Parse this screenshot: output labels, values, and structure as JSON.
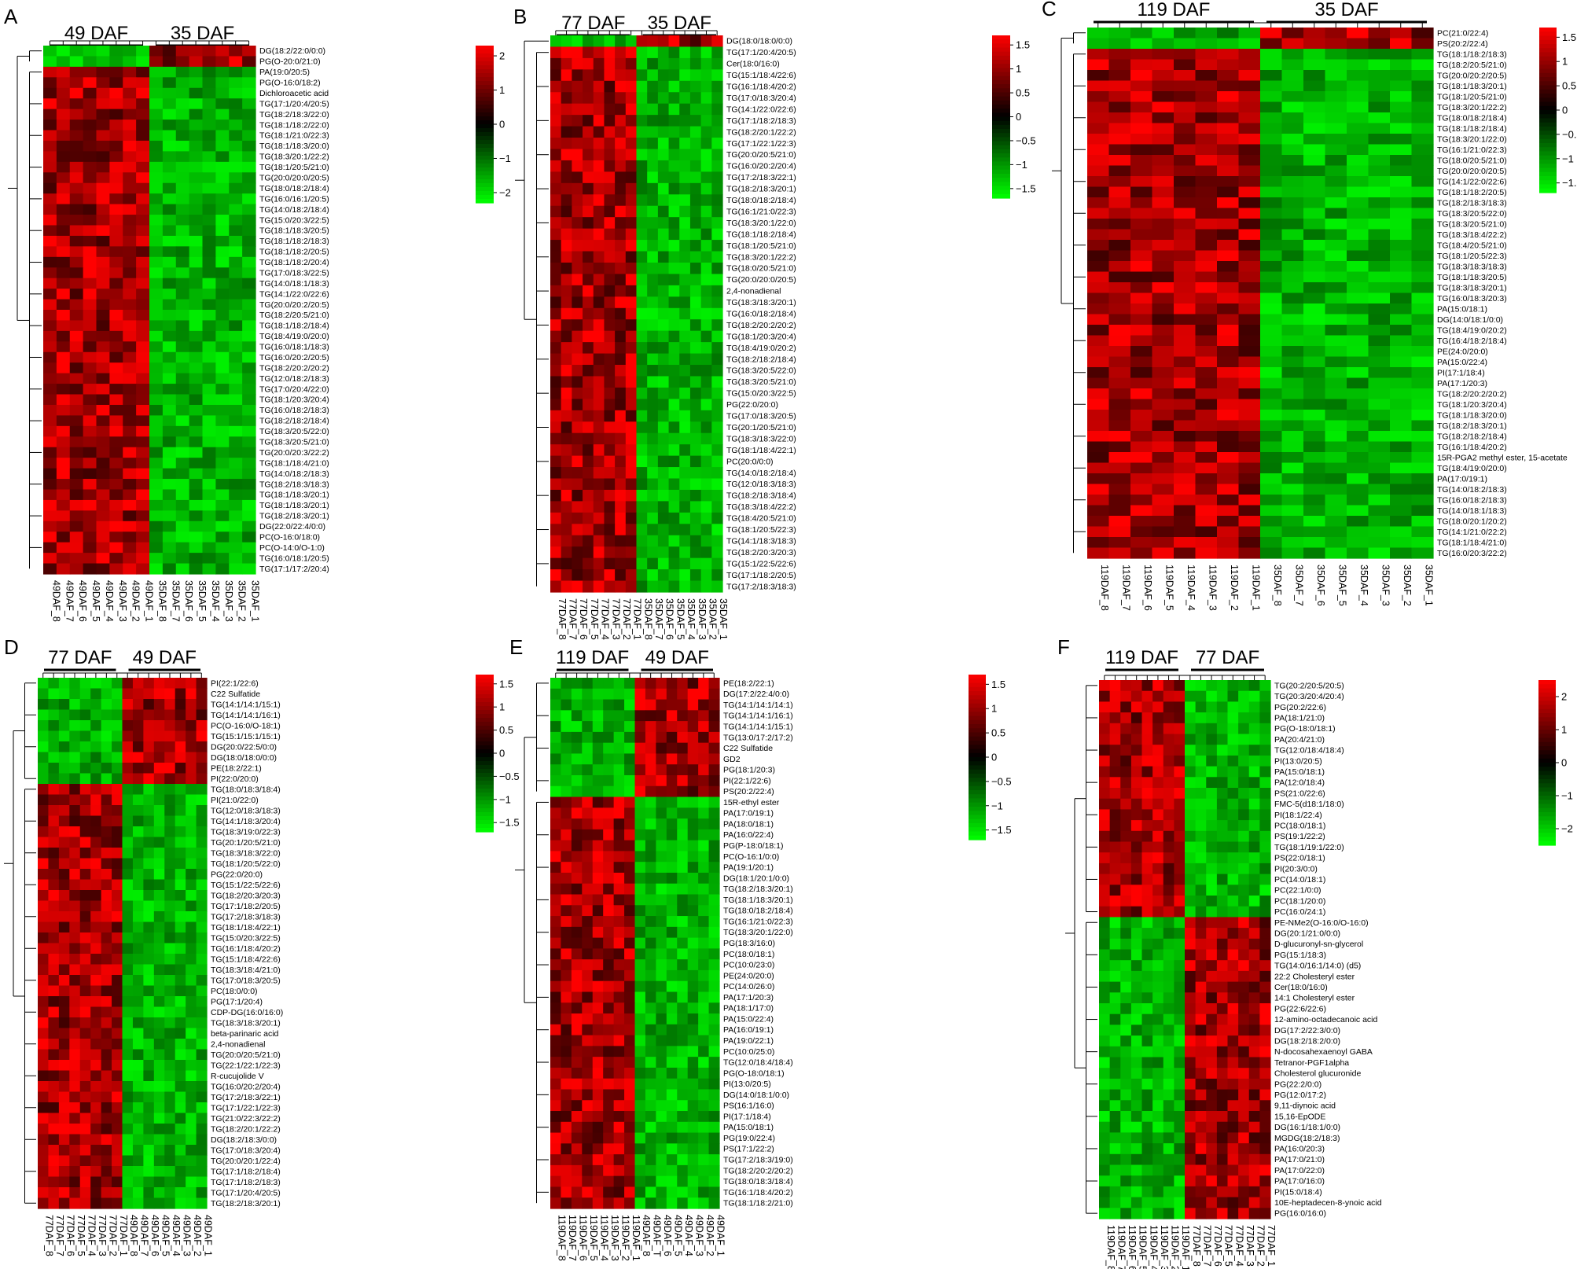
{
  "colors": {
    "low": "#00ff00",
    "mid": "#000000",
    "high": "#ff0000"
  },
  "chart_data": [
    {
      "type": "heatmap",
      "panel": "A",
      "groups": [
        "49 DAF",
        "35 DAF"
      ],
      "columns": [
        "49DAF_8",
        "49DAF_7",
        "49DAF_6",
        "49DAF_5",
        "49DAF_4",
        "49DAF_3",
        "49DAF_2",
        "49DAF_1",
        "35DAF_8",
        "35DAF_7",
        "35DAF_6",
        "35DAF_5",
        "35DAF_4",
        "35DAF_3",
        "35DAF_2",
        "35DAF_1"
      ],
      "rows": [
        "DG(18:2/22:0/0:0)",
        "PG(O-20:0/21:0)",
        "PA(19:0/20:5)",
        "PG(O-16:0/18:2)",
        "Dichloroacetic acid",
        "TG(17:1/20:4/20:5)",
        "TG(18:2/18:3/22:0)",
        "TG(18:1/18:2/22:0)",
        "TG(18:1/21:0/22:3)",
        "TG(18:1/18:3/20:0)",
        "TG(18:3/20:1/22:2)",
        "TG(18:1/20:5/21:0)",
        "TG(20:0/20:0/20:5)",
        "TG(18:0/18:2/18:4)",
        "TG(16:0/16:1/20:5)",
        "TG(14:0/18:2/18:4)",
        "TG(15:0/20:3/22:5)",
        "TG(18:1/18:3/20:5)",
        "TG(18:1/18:2/18:3)",
        "TG(18:1/18:2/20:5)",
        "TG(18:1/18:2/20:4)",
        "TG(17:0/18:3/22:5)",
        "TG(14:0/18:1/18:3)",
        "TG(14:1/22:0/22:6)",
        "TG(20:0/20:2/20:5)",
        "TG(18:2/20:5/21:0)",
        "TG(18:1/18:2/18:4)",
        "TG(18:4/19:0/20:0)",
        "TG(16:0/18:1/18:3)",
        "TG(16:0/20:2/20:5)",
        "TG(18:2/20:2/20:2)",
        "TG(12:0/18:2/18:3)",
        "TG(17:0/20:4/22:0)",
        "TG(18:1/20:3/20:4)",
        "TG(16:0/18:2/18:3)",
        "TG(18:2/18:2/18:4)",
        "TG(18:3/20:5/22:0)",
        "TG(18:3/20:5/21:0)",
        "TG(20:0/20:3/22:2)",
        "TG(18:1/18:4/21:0)",
        "TG(14:0/18:2/18:3)",
        "TG(18:2/18:3/18:3)",
        "TG(18:1/18:3/20:1)",
        "TG(18:1/18:3/20:1)",
        "TG(18:2/18:3/20:1)",
        "DG(22:0/22:4/0:0)",
        "PC(O-16:0/18:0)",
        "PC(O-14:0/O-1:0)",
        "TG(16:0/18:1/20:5)",
        "TG(17:1/17:2/20:4)"
      ],
      "pattern": [
        "down",
        "down",
        "up",
        "up",
        "up",
        "up",
        "up",
        "up",
        "up",
        "up",
        "up",
        "up",
        "up",
        "up",
        "up",
        "up",
        "up",
        "up",
        "up",
        "up",
        "up",
        "up",
        "up",
        "up",
        "up",
        "up",
        "up",
        "up",
        "up",
        "up",
        "up",
        "up",
        "up",
        "up",
        "up",
        "up",
        "up",
        "up",
        "up",
        "up",
        "up",
        "up",
        "up",
        "up",
        "up",
        "up",
        "up",
        "up",
        "up",
        "up"
      ],
      "colorbar": {
        "ticks": [
          "2",
          "1",
          "0",
          "−1",
          "−2"
        ],
        "range": [
          -2.3,
          2.3
        ]
      }
    },
    {
      "type": "heatmap",
      "panel": "B",
      "groups": [
        "77 DAF",
        "35 DAF"
      ],
      "columns": [
        "77DAF_8",
        "77DAF_7",
        "77DAF_6",
        "77DAF_5",
        "77DAF_4",
        "77DAF_3",
        "77DAF_2",
        "77DAF_1",
        "35DAF_8",
        "35DAF_7",
        "35DAF_6",
        "35DAF_5",
        "35DAF_4",
        "35DAF_3",
        "35DAF_2",
        "35DAF_1"
      ],
      "rows": [
        "DG(18:0/18:0/0:0)",
        "TG(17:1/20:4/20:5)",
        "Cer(18:0/16:0)",
        "TG(15:1/18:4/22:6)",
        "TG(16:1/18:4/20:2)",
        "TG(17:0/18:3/20:4)",
        "TG(14:1/22:0/22:6)",
        "TG(17:1/18:2/18:3)",
        "TG(18:2/20:1/22:2)",
        "TG(17:1/22:1/22:3)",
        "TG(20:0/20:5/21:0)",
        "TG(16:0/20:2/20:4)",
        "TG(17:2/18:3/22:1)",
        "TG(18:2/18:3/20:1)",
        "TG(18:0/18:2/18:4)",
        "TG(16:1/21:0/22:3)",
        "TG(18:3/20:1/22:0)",
        "TG(18:1/18:2/18:4)",
        "TG(18:1/20:5/21:0)",
        "TG(18:3/20:1/22:2)",
        "TG(18:0/20:5/21:0)",
        "TG(20:0/20:0/20:5)",
        "2,4-nonadienal",
        "TG(18:3/18:3/20:1)",
        "TG(16:0/18:2/18:4)",
        "TG(18:2/20:2/20:2)",
        "TG(18:1/20:3/20:4)",
        "TG(18:4/19:0/20:2)",
        "TG(18:2/18:2/18:4)",
        "TG(18:3/20:5/22:0)",
        "TG(18:3/20:5/21:0)",
        "TG(15:0/20:3/22:5)",
        "PG(22:0/20:0)",
        "TG(17:0/18:3/20:5)",
        "TG(20:1/20:5/21:0)",
        "TG(18:3/18:3/22:0)",
        "TG(18:1/18:4/22:1)",
        "PC(20:0/0:0)",
        "TG(14:0/18:2/18:4)",
        "TG(12:0/18:3/18:3)",
        "TG(18:2/18:3/18:4)",
        "TG(18:3/18:4/22:2)",
        "TG(18:4/20:5/21:0)",
        "TG(18:1/20:5/22:3)",
        "TG(14:1/18:3/18:3)",
        "TG(18:2/20:3/20:3)",
        "TG(15:1/22:5/22:6)",
        "TG(17:1/18:2/20:5)",
        "TG(17:2/18:3/18:3)"
      ],
      "pattern": [
        "down",
        "up",
        "up",
        "up",
        "up",
        "up",
        "up",
        "up",
        "up",
        "up",
        "up",
        "up",
        "up",
        "up",
        "up",
        "up",
        "up",
        "up",
        "up",
        "up",
        "up",
        "up",
        "up",
        "up",
        "up",
        "up",
        "up",
        "up",
        "up",
        "up",
        "up",
        "up",
        "up",
        "up",
        "up",
        "up",
        "up",
        "up",
        "up",
        "up",
        "up",
        "up",
        "up",
        "up",
        "up",
        "up",
        "up",
        "up",
        "up"
      ],
      "colorbar": {
        "ticks": [
          "1.5",
          "1",
          "0.5",
          "0",
          "−0.5",
          "−1",
          "−1.5"
        ],
        "range": [
          -1.7,
          1.7
        ]
      }
    },
    {
      "type": "heatmap",
      "panel": "C",
      "groups": [
        "119 DAF",
        "35 DAF"
      ],
      "columns": [
        "119DAF_8",
        "119DAF_7",
        "119DAF_6",
        "119DAF_5",
        "119DAF_4",
        "119DAF_3",
        "119DAF_2",
        "119DAF_1",
        "35DAF_8",
        "35DAF_7",
        "35DAF_6",
        "35DAF_5",
        "35DAF_4",
        "35DAF_3",
        "35DAF_2",
        "35DAF_1"
      ],
      "rows": [
        "PC(21:0/22:4)",
        "PS(20:2/22:4)",
        "TG(18:1/18:2/18:3)",
        "TG(18:2/20:5/21:0)",
        "TG(20:0/20:2/20:5)",
        "TG(18:1/18:3/20:1)",
        "TG(18:1/20:5/21:0)",
        "TG(18:3/20:1/22:2)",
        "TG(18:0/18:2/18:4)",
        "TG(18:1/18:2/18:4)",
        "TG(18:3/20:1/22:0)",
        "TG(16:1/21:0/22:3)",
        "TG(18:0/20:5/21:0)",
        "TG(20:0/20:0/20:5)",
        "TG(14:1/22:0/22:6)",
        "TG(18:1/18:2/20:5)",
        "TG(18:2/18:3/18:3)",
        "TG(18:3/20:5/22:0)",
        "TG(18:3/20:5/21:0)",
        "TG(18:3/18:4/22:2)",
        "TG(18:4/20:5/21:0)",
        "TG(18:1/20:5/22:3)",
        "TG(18:3/18:3/18:3)",
        "TG(18:1/18:3/20:5)",
        "TG(18:3/18:3/20:1)",
        "TG(16:0/18:3/20:3)",
        "PA(15:0/18:1)",
        "DG(14:0/18:1/0:0)",
        "TG(18:4/19:0/20:2)",
        "TG(16:4/18:2/18:4)",
        "PE(24:0/20:0)",
        "PA(15:0/22:4)",
        "PI(17:1/18:4)",
        "PA(17:1/20:3)",
        "TG(18:2/20:2/20:2)",
        "TG(18:1/20:3/20:4)",
        "TG(18:1/18:3/20:0)",
        "TG(18:2/18:3/20:1)",
        "TG(18:2/18:2/18:4)",
        "TG(16:1/18:4/20:2)",
        "15R-PGA2 methyl ester, 15-acetate",
        "TG(18:4/19:0/20:0)",
        "PA(17:0/19:1)",
        "TG(14:0/18:2/18:3)",
        "TG(16:0/18:2/18:3)",
        "TG(14:0/18:1/18:3)",
        "TG(18:0/20:1/20:2)",
        "TG(14:1/21:0/22:2)",
        "TG(18:1/18:4/21:0)",
        "TG(16:0/20:3/22:2)"
      ],
      "pattern": [
        "down",
        "down",
        "up",
        "up",
        "up",
        "up",
        "up",
        "up",
        "up",
        "up",
        "up",
        "up",
        "up",
        "up",
        "up",
        "up",
        "up",
        "up",
        "up",
        "up",
        "up",
        "up",
        "up",
        "up",
        "up",
        "up",
        "up",
        "up",
        "up",
        "up",
        "up",
        "up",
        "up",
        "up",
        "up",
        "up",
        "up",
        "up",
        "up",
        "up",
        "up",
        "up",
        "up",
        "up",
        "up",
        "up",
        "up",
        "up",
        "up",
        "up"
      ],
      "colorbar": {
        "ticks": [
          "1.5",
          "1",
          "0.5",
          "0",
          "−0.5",
          "−1",
          "−1.5"
        ],
        "range": [
          -1.7,
          1.7
        ]
      }
    },
    {
      "type": "heatmap",
      "panel": "D",
      "groups": [
        "77 DAF",
        "49 DAF"
      ],
      "columns": [
        "77DAF_8",
        "77DAF_7",
        "77DAF_6",
        "77DAF_5",
        "77DAF_4",
        "77DAF_3",
        "77DAF_2",
        "77DAF_1",
        "49DAF_8",
        "49DAF_7",
        "49DAF_6",
        "49DAF_5",
        "49DAF_4",
        "49DAF_3",
        "49DAF_2",
        "49DAF_1"
      ],
      "rows": [
        "PI(22:1/22:6)",
        "C22 Sulfatide",
        "TG(14:1/14:1/15:1)",
        "TG(14:1/14:1/16:1)",
        "PC(O-16:0/O-18:1)",
        "TG(15:1/15:1/15:1)",
        "DG(20:0/22:5/0:0)",
        "DG(18:0/18:0/0:0)",
        "PE(18:2/22:1)",
        "PI(22:0/20:0)",
        "TG(18:0/18:3/18:4)",
        "PI(21:0/22:0)",
        "TG(12:0/18:3/18:3)",
        "TG(14:1/18:3/20:4)",
        "TG(18:3/19:0/22:3)",
        "TG(20:1/20:5/21:0)",
        "TG(18:3/18:3/22:0)",
        "TG(18:1/20:5/22:0)",
        "PG(22:0/20:0)",
        "TG(15:1/22:5/22:6)",
        "TG(18:2/20:3/20:3)",
        "TG(17:1/18:2/20:5)",
        "TG(17:2/18:3/18:3)",
        "TG(18:1/18:4/22:1)",
        "TG(15:0/20:3/22:5)",
        "TG(16:1/18:4/20:2)",
        "TG(15:1/18:4/22:6)",
        "TG(18:3/18:4/21:0)",
        "TG(17:0/18:3/20:5)",
        "PC(18:0/0:0)",
        "PG(17:1/20:4)",
        "CDP-DG(16:0/16:0)",
        "TG(18:3/18:3/20:1)",
        "beta-parinaric acid",
        "2,4-nonadienal",
        "TG(20:0/20:5/21:0)",
        "TG(22:1/22:1/22:3)",
        "R-cucujolide V",
        "TG(16:0/20:2/20:4)",
        "TG(17:2/18:3/22:1)",
        "TG(17:1/22:1/22:3)",
        "TG(21:0/22:3/22:2)",
        "TG(18:2/20:1/22:2)",
        "DG(18:2/18:3/0:0)",
        "TG(17:0/18:3/20:4)",
        "TG(20:0/20:1/22:4)",
        "TG(17:1/18:2/18:4)",
        "TG(17:1/18:2/18:3)",
        "TG(17:1/20:4/20:5)",
        "TG(18:2/18:3/20:1)"
      ],
      "pattern": [
        "down",
        "down",
        "down",
        "down",
        "down",
        "down",
        "down",
        "down",
        "down",
        "down",
        "up",
        "up",
        "up",
        "up",
        "up",
        "up",
        "up",
        "up",
        "up",
        "up",
        "up",
        "up",
        "up",
        "up",
        "up",
        "up",
        "up",
        "up",
        "up",
        "up",
        "up",
        "up",
        "up",
        "up",
        "up",
        "up",
        "up",
        "up",
        "up",
        "up",
        "up",
        "up",
        "up",
        "up",
        "up",
        "up",
        "up",
        "up",
        "up",
        "up"
      ],
      "colorbar": {
        "ticks": [
          "1.5",
          "1",
          "0.5",
          "0",
          "−0.5",
          "−1",
          "−1.5"
        ],
        "range": [
          -1.7,
          1.7
        ]
      }
    },
    {
      "type": "heatmap",
      "panel": "E",
      "groups": [
        "119 DAF",
        "49 DAF"
      ],
      "columns": [
        "119DAF_8",
        "119DAF_7",
        "119DAF_6",
        "119DAF_5",
        "119DAF_4",
        "119DAF_3",
        "119DAF_2",
        "119DAF_1",
        "49DAF_8",
        "49DAF_T",
        "49DAF_6",
        "49DAF_5",
        "49DAF_4",
        "49DAF_3",
        "49DAF_2",
        "49DAF_1"
      ],
      "rows": [
        "PE(18:2/22:1)",
        "DG(17:2/22:4/0:0)",
        "TG(14:1/14:1/14:1)",
        "TG(14:1/14:1/16:1)",
        "TG(14:1/14:1/15:1)",
        "TG(13:0/17:2/17:2)",
        "C22 Sulfatide",
        "GD2",
        "PG(18:1/20:3)",
        "PI(22:1/22:6)",
        "PS(20:2/22:4)",
        "15R-ethyl ester",
        "PA(17:0/19:1)",
        "PA(18:0/18:1)",
        "PA(16:0/22:4)",
        "PG(P-18:0/18:1)",
        "PC(O-16:1/0:0)",
        "PA(19:1/20:1)",
        "DG(18:1/20:1/0:0)",
        "TG(18:2/18:3/20:1)",
        "TG(18:1/18:3/20:1)",
        "TG(18:0/18:2/18:4)",
        "TG(16:1/21:0/22:3)",
        "TG(18:3/20:1/22:0)",
        "PG(18:3/16:0)",
        "PC(18:0/18:1)",
        "PC(10:0/23:0)",
        "PE(24:0/20:0)",
        "PC(14:0/26:0)",
        "PA(17:1/20:3)",
        "PA(18:1/17:0)",
        "PA(15:0/22:4)",
        "PA(16:0/19:1)",
        "PA(19:0/22:1)",
        "PC(10:0/25:0)",
        "TG(12:0/18:4/18:4)",
        "PG(O-18:0/18:1)",
        "PI(13:0/20:5)",
        "DG(14:0/18:1/0:0)",
        "PS(16:1/16:0)",
        "PI(17:1/18:4)",
        "PA(15:0/18:1)",
        "PG(19:0/22:4)",
        "PS(17:1/22:2)",
        "TG(17:2/18:3/19:0)",
        "TG(18:2/20:2/20:2)",
        "TG(18:0/18:3/18:4)",
        "TG(16:1/18:4/20:2)",
        "TG(18:1/18:2/21:0)"
      ],
      "pattern": [
        "down",
        "down",
        "down",
        "down",
        "down",
        "down",
        "down",
        "down",
        "down",
        "down",
        "down",
        "up",
        "up",
        "up",
        "up",
        "up",
        "up",
        "up",
        "up",
        "up",
        "up",
        "up",
        "up",
        "up",
        "up",
        "up",
        "up",
        "up",
        "up",
        "up",
        "up",
        "up",
        "up",
        "up",
        "up",
        "up",
        "up",
        "up",
        "up",
        "up",
        "up",
        "up",
        "up",
        "up",
        "up",
        "up",
        "up",
        "up",
        "up"
      ],
      "colorbar": {
        "ticks": [
          "1.5",
          "1",
          "0.5",
          "0",
          "−0.5",
          "−1",
          "−1.5"
        ],
        "range": [
          -1.7,
          1.7
        ]
      }
    },
    {
      "type": "heatmap",
      "panel": "F",
      "groups": [
        "119 DAF",
        "77 DAF"
      ],
      "columns": [
        "119DAF_8",
        "119DAF_7",
        "119DAF_6",
        "119DAF_5",
        "119DAF_4",
        "119DAF_3",
        "119DAF_2",
        "119DAF_1",
        "77DAF_8",
        "77DAF_7",
        "77DAF_6",
        "77DAF_5",
        "77DAF_4",
        "77DAF_3",
        "77DAF_2",
        "77DAF_1"
      ],
      "rows": [
        "TG(20:2/20:5/20:5)",
        "TG(20:3/20:4/20:4)",
        "PG(20:2/22:6)",
        "PA(18:1/21:0)",
        "PG(O-18:0/18:1)",
        "PA(20:4/21:0)",
        "TG(12:0/18:4/18:4)",
        "PI(13:0/20:5)",
        "PA(15:0/18:1)",
        "PA(12:0/18:4)",
        "PS(21:0/22:6)",
        "FMC-5(d18:1/18:0)",
        "PI(18:1/22:4)",
        "PC(18:0/18:1)",
        "PS(19:1/22:2)",
        "TG(18:1/19:1/22:0)",
        "PS(22:0/18:1)",
        "PI(20:3/0:0)",
        "PC(14:0/18:1)",
        "PC(22:1/0:0)",
        "PC(18:1/20:0)",
        "PC(16:0/24:1)",
        "PE-NMe2(O-16:0/O-16:0)",
        "DG(20:1/21:0/0:0)",
        "D-glucuronyl-sn-glycerol",
        "PG(15:1/18:3)",
        "TG(14:0/16:1/14:0) (d5)",
        "22:2 Cholesteryl ester",
        "Cer(18:0/16:0)",
        "14:1 Cholesteryl ester",
        "PG(22:6/22:6)",
        "12-amino-octadecanoic acid",
        "DG(17:2/22:3/0:0)",
        "DG(18:2/18:2/0:0)",
        "N-docosahexaenoyl GABA",
        "Tetranor-PGF1alpha",
        "Cholesterol glucuronide",
        "PG(22:2/0:0)",
        "PG(12:0/17:2)",
        "9,11-diynoic acid",
        "15,16-EpODE",
        "DG(16:1/18:1/0:0)",
        "MGDG(18:2/18:3)",
        "PA(16:0/20:3)",
        "PA(17:0/21:0)",
        "PA(17:0/22:0)",
        "PA(17:0/16:0)",
        "PI(15:0/18:4)",
        "10E-heptadecen-8-ynoic acid",
        "PG(16:0/16:0)"
      ],
      "pattern": [
        "up",
        "up",
        "up",
        "up",
        "up",
        "up",
        "up",
        "up",
        "up",
        "up",
        "up",
        "up",
        "up",
        "up",
        "up",
        "up",
        "up",
        "up",
        "up",
        "up",
        "up",
        "up",
        "down",
        "down",
        "down",
        "down",
        "down",
        "down",
        "down",
        "down",
        "down",
        "down",
        "down",
        "down",
        "down",
        "down",
        "down",
        "down",
        "down",
        "down",
        "down",
        "down",
        "down",
        "down",
        "down",
        "down",
        "down",
        "down",
        "down",
        "down"
      ],
      "colorbar": {
        "ticks": [
          "2",
          "1",
          "0",
          "−1",
          "−2"
        ],
        "range": [
          -2.5,
          2.5
        ]
      }
    }
  ]
}
